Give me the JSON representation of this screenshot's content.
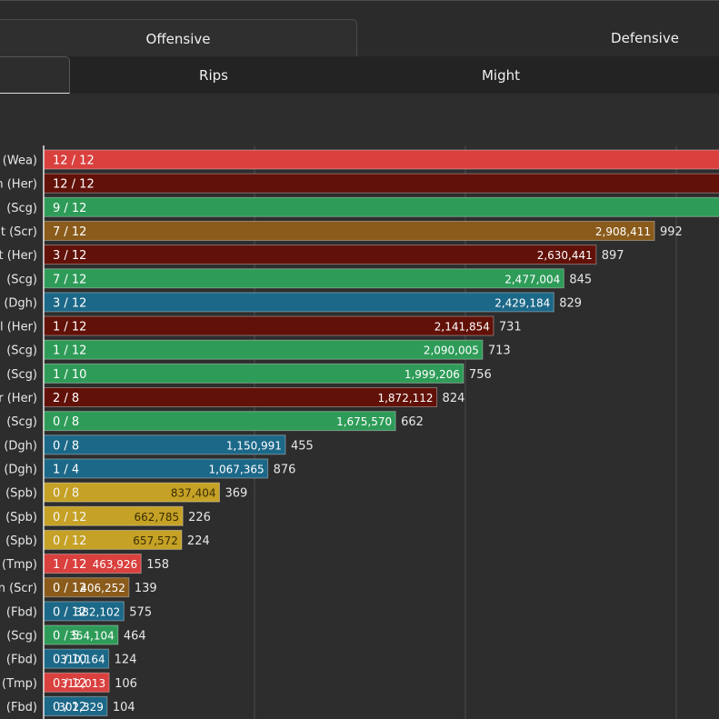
{
  "tabs_primary": [
    {
      "label": "Offensive",
      "active": true
    },
    {
      "label": "Defensive",
      "active": false
    }
  ],
  "tabs_secondary": [
    {
      "label": "",
      "active": true
    },
    {
      "label": "Rips",
      "active": false
    },
    {
      "label": "Might",
      "active": false
    }
  ],
  "chart_data": {
    "type": "bar",
    "orientation": "horizontal",
    "title": "",
    "xlabel": "",
    "ylabel": "",
    "categories": [
      "(Wea)",
      "(Her)",
      "(Scg)",
      "(Scr)",
      "(Her)",
      "(Scg)",
      "(Dgh)",
      "(Her)",
      "(Scg)",
      "(Scg)",
      "(Her)",
      "(Scg)",
      "(Dgh)",
      "(Dgh)",
      "(Spb)",
      "(Spb)",
      "(Spb)",
      "(Tmp)",
      "(Scr)",
      "(Fbd)",
      "(Scg)",
      "(Fbd)",
      "(Tmp)",
      "(Fbd)"
    ],
    "category_prefix": [
      ") ",
      "n ",
      "",
      "t ",
      "t ",
      "",
      "",
      "l ",
      "",
      "",
      "r ",
      "",
      "",
      "",
      "",
      "",
      "",
      "",
      "n ",
      "",
      "",
      "",
      "",
      ""
    ],
    "values": [
      3800000,
      3700000,
      3650000,
      2908411,
      2630441,
      2477004,
      2429184,
      2141854,
      2090005,
      1999206,
      1872112,
      1675570,
      1150991,
      1067365,
      837404,
      662785,
      657572,
      463926,
      406252,
      382102,
      354104,
      310164,
      312013,
      302329
    ],
    "value_labels": [
      "",
      "",
      "",
      "2,908,411",
      "2,630,441",
      "2,477,004",
      "2,429,184",
      "2,141,854",
      "2,090,005",
      "1,999,206",
      "1,872,112",
      "1,675,570",
      "1,150,991",
      "1,067,365",
      "837,404",
      "662,785",
      "657,572",
      "463,926",
      "406,252",
      "382,102",
      "354,104",
      "310,164",
      "312,013",
      "302,329"
    ],
    "ratios": [
      "12 / 12",
      "12 / 12",
      "9 / 12",
      "7 / 12",
      "3 / 12",
      "7 / 12",
      "3 / 12",
      "1 / 12",
      "1 / 12",
      "1 / 10",
      "2 / 8",
      "0 / 8",
      "0 / 8",
      "1 / 4",
      "0 / 8",
      "0 / 12",
      "0 / 12",
      "1 / 12",
      "0 / 12",
      "0 / 12",
      "0 / 5",
      "0 / 10",
      "0 / 12",
      "0 / 12"
    ],
    "secondary_values": [
      "",
      "",
      "",
      "992",
      "897",
      "845",
      "829",
      "731",
      "713",
      "756",
      "824",
      "662",
      "455",
      "876",
      "369",
      "226",
      "224",
      "158",
      "139",
      "575",
      "464",
      "124",
      "106",
      "104"
    ],
    "profession_colors": {
      "Wea": "#d9403e",
      "Her": "#621108",
      "Scg": "#2e9c58",
      "Scr": "#8a5b1b",
      "Dgh": "#1c6888",
      "Spb": "#c5a125",
      "Tmp": "#d9403e",
      "Fbd": "#1c6888"
    },
    "grid": true
  }
}
